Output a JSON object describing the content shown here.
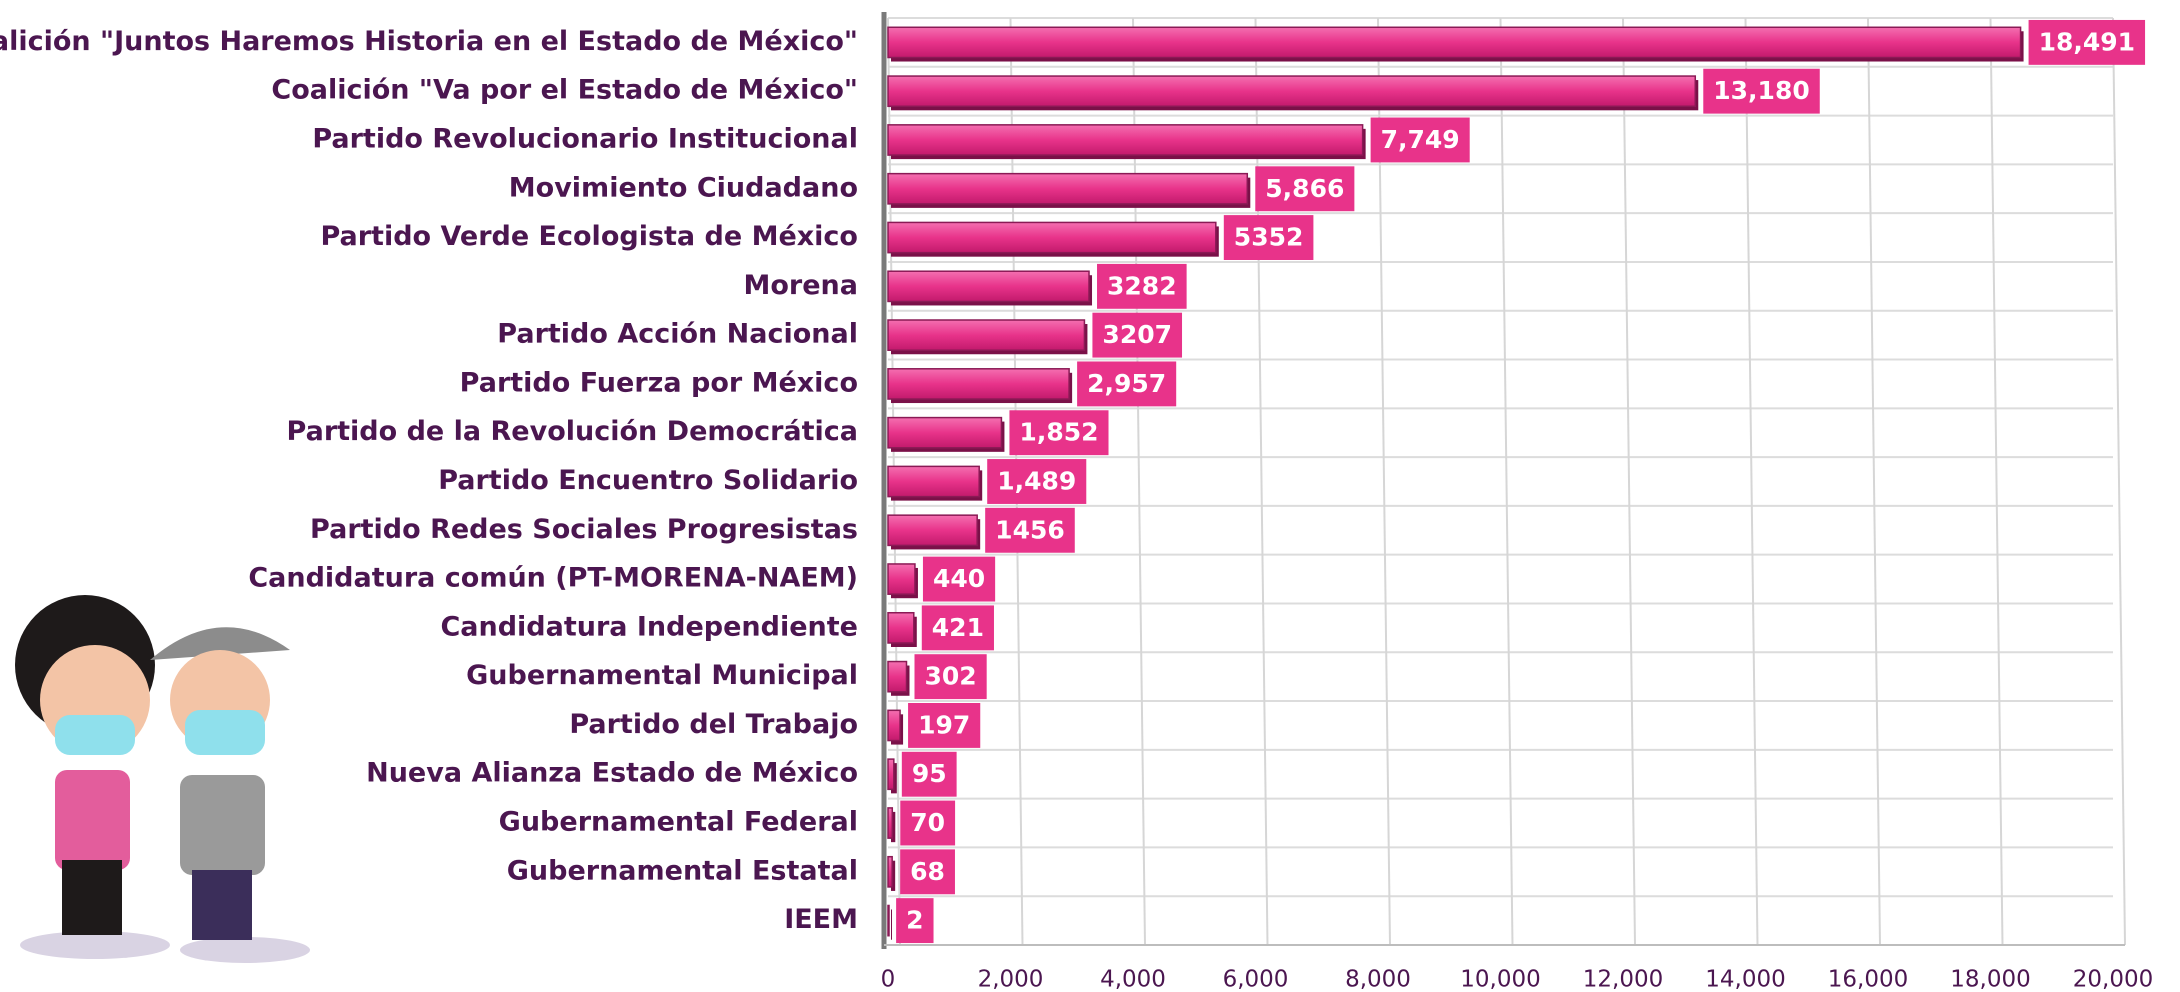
{
  "chart_data": {
    "type": "bar",
    "orientation": "horizontal",
    "categories": [
      "Coalición \"Juntos Haremos Historia en el Estado de México\"",
      "Coalición \"Va por el Estado de México\"",
      "Partido Revolucionario Institucional",
      "Movimiento Ciudadano",
      "Partido Verde Ecologista de México",
      "Morena",
      "Partido Acción Nacional",
      "Partido Fuerza por México",
      "Partido de la Revolución Democrática",
      "Partido Encuentro Solidario",
      "Partido Redes Sociales Progresistas",
      "Candidatura común (PT-MORENA-NAEM)",
      "Candidatura Independiente",
      "Gubernamental Municipal",
      "Partido del Trabajo",
      "Nueva Alianza Estado de México",
      "Gubernamental Federal",
      "Gubernamental Estatal",
      "IEEM"
    ],
    "values": [
      18491,
      13180,
      7749,
      5866,
      5352,
      3282,
      3207,
      2957,
      1852,
      1489,
      1456,
      440,
      421,
      302,
      197,
      95,
      70,
      68,
      2
    ],
    "value_labels": [
      "18,491",
      "13,180",
      "7,749",
      "5,866",
      "5352",
      "3282",
      "3207",
      "2,957",
      "1,852",
      "1,489",
      "1456",
      "440",
      "421",
      "302",
      "197",
      "95",
      "70",
      "68",
      "2"
    ],
    "color": "#e8338a",
    "xlim": [
      0,
      20000
    ],
    "xticks": [
      0,
      {
        "value": 2000,
        "label": "2,000"
      },
      {
        "value": 4000,
        "label": "4,000"
      },
      {
        "value": 6000,
        "label": "6,000"
      },
      {
        "value": 8000,
        "label": "8,000"
      },
      {
        "value": 10000,
        "label": "10,000"
      },
      {
        "value": 12000,
        "label": "12,000"
      },
      {
        "value": 14000,
        "label": "14,000"
      },
      {
        "value": 16000,
        "label": "16,000"
      },
      {
        "value": 18000,
        "label": "18,000"
      },
      {
        "value": 20000,
        "label": "20,000"
      }
    ],
    "grid": true
  }
}
